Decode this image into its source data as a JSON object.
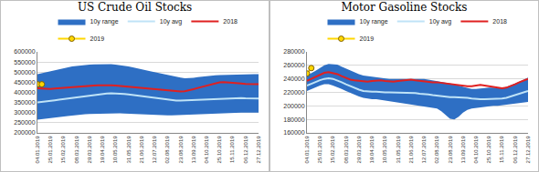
{
  "chart_data": [
    {
      "type": "line",
      "title": "US Crude Oil Stocks",
      "categories": [
        "04.01.2019",
        null,
        null,
        "25.01.2019",
        null,
        null,
        "15.02.2019",
        null,
        null,
        "08.03.2019",
        null,
        null,
        "29.03.2019",
        null,
        null,
        "19.04.2019",
        null,
        null,
        "10.05.2019",
        null,
        null,
        "31.05.2019",
        null,
        null,
        "21.06.2019",
        null,
        null,
        "12.07.2019",
        null,
        null,
        "02.08.2019",
        null,
        null,
        "23.08.2019",
        null,
        null,
        "13.09.2019",
        null,
        null,
        "04.10.2019",
        null,
        null,
        "25.10.2019",
        null,
        null,
        "15.11.2019",
        null,
        null,
        "06.12.2019",
        null,
        null,
        "27.12.2019"
      ],
      "series": [
        {
          "name": "10y range",
          "type": "area",
          "color": "#2e6fc4",
          "values": [
            490000,
            495000,
            500000,
            505000,
            510000,
            515000,
            520000,
            525000,
            528000,
            530000,
            533000,
            535000,
            537000,
            538000,
            539000,
            540000,
            540000,
            539000,
            537000,
            535000,
            532000,
            528000,
            524000,
            520000,
            515000,
            510000,
            505000,
            500000,
            495000,
            490000,
            485000,
            480000,
            476000,
            473000,
            470000,
            470000,
            472000,
            475000,
            478000,
            480000,
            482000,
            484000,
            485000,
            486000,
            487000,
            487000,
            488000,
            488000,
            489000,
            489000,
            490000,
            490000
          ],
          "lower": [
            265000,
            268000,
            270000,
            272000,
            275000,
            278000,
            280000,
            283000,
            285000,
            288000,
            290000,
            292000,
            293000,
            294000,
            295000,
            296000,
            297000,
            298000,
            298000,
            297000,
            296000,
            295000,
            293000,
            291000,
            290000,
            288000,
            287000,
            286000,
            285000,
            285000,
            286000,
            287000,
            288000,
            289000,
            290000,
            290000,
            291000,
            292000,
            293000,
            294000,
            295000,
            296000,
            297000,
            298000,
            298000,
            299000,
            299000,
            300000,
            300000,
            300000,
            300000,
            300000
          ]
        },
        {
          "name": "10y avg",
          "type": "line",
          "color": "#bfe3f7",
          "values": [
            350000,
            352000,
            355000,
            358000,
            361000,
            364000,
            367000,
            370000,
            373000,
            376000,
            379000,
            382000,
            385000,
            388000,
            390000,
            392000,
            394000,
            395000,
            395000,
            394000,
            392000,
            390000,
            387000,
            384000,
            381000,
            378000,
            375000,
            372000,
            369000,
            366000,
            363000,
            361000,
            360000,
            360000,
            361000,
            362000,
            363000,
            364000,
            365000,
            366000,
            367000,
            368000,
            369000,
            370000,
            371000,
            372000,
            372000,
            372000,
            371000,
            371000,
            370000,
            370000
          ]
        },
        {
          "name": "2018",
          "type": "line",
          "color": "#e02020",
          "values": [
            420000,
            418000,
            416000,
            417000,
            419000,
            421000,
            423000,
            425000,
            427000,
            429000,
            430000,
            432000,
            433000,
            434000,
            435000,
            436000,
            436000,
            435000,
            434000,
            432000,
            430000,
            428000,
            426000,
            424000,
            422000,
            420000,
            418000,
            416000,
            414000,
            412000,
            410000,
            408000,
            406000,
            405000,
            406000,
            410000,
            416000,
            422000,
            428000,
            434000,
            440000,
            445000,
            449000,
            451000,
            450000,
            448000,
            446000,
            444000,
            442000,
            441000,
            440000,
            440000
          ]
        },
        {
          "name": "2019",
          "type": "line",
          "color": "#ffd700",
          "marker": "circle",
          "values": [
            440000,
            440000,
            null,
            null,
            null,
            null,
            null,
            null,
            null,
            null,
            null,
            null,
            null,
            null,
            null,
            null,
            null,
            null,
            null,
            null,
            null,
            null,
            null,
            null,
            null,
            null,
            null,
            null,
            null,
            null,
            null,
            null,
            null,
            null,
            null,
            null,
            null,
            null,
            null,
            null,
            null,
            null,
            null,
            null,
            null,
            null,
            null,
            null,
            null,
            null,
            null,
            null
          ]
        }
      ],
      "ylim": [
        200000,
        600000
      ],
      "yticks": [
        200000,
        250000,
        300000,
        350000,
        400000,
        450000,
        500000,
        550000,
        600000
      ],
      "grid": true,
      "legend": "top"
    },
    {
      "type": "line",
      "title": "Motor Gasoline Stocks",
      "categories": [
        "04.01.2019",
        null,
        null,
        "25.01.2019",
        null,
        null,
        "15.02.2019",
        null,
        null,
        "08.03.2019",
        null,
        null,
        "29.03.2019",
        null,
        null,
        "19.04.2019",
        null,
        null,
        "10.05.2019",
        null,
        null,
        "31.05.2019",
        null,
        null,
        "21.06.2019",
        null,
        null,
        "12.07.2019",
        null,
        null,
        "02.08.2019",
        null,
        null,
        "23.08.2019",
        null,
        null,
        "13.09.2019",
        null,
        null,
        "04.10.2019",
        null,
        null,
        "25.10.2019",
        null,
        null,
        "15.11.2019",
        null,
        null,
        "06.12.2019",
        null,
        null,
        "27.12.2019"
      ],
      "series": [
        {
          "name": "10y range",
          "type": "area",
          "color": "#2e6fc4",
          "values": [
            245000,
            248000,
            252000,
            256000,
            260000,
            262000,
            262000,
            261000,
            258000,
            255000,
            252000,
            249000,
            247000,
            245000,
            244000,
            243000,
            242000,
            241000,
            240000,
            240000,
            240000,
            240000,
            240000,
            241000,
            241000,
            241000,
            240000,
            240000,
            239000,
            238000,
            237000,
            236000,
            235000,
            234000,
            232000,
            230000,
            228000,
            226000,
            225000,
            225000,
            226000,
            227000,
            227000,
            227000,
            226000,
            226000,
            228000,
            230000,
            233000,
            236000,
            239000,
            242000
          ],
          "lower": [
            222000,
            225000,
            228000,
            230000,
            232000,
            232000,
            230000,
            228000,
            225000,
            222000,
            219000,
            216000,
            214000,
            212000,
            211000,
            210000,
            210000,
            209000,
            208000,
            207000,
            206000,
            205000,
            204000,
            203000,
            202000,
            202000,
            201000,
            200000,
            199000,
            198000,
            196000,
            192000,
            186000,
            181000,
            180000,
            184000,
            190000,
            194000,
            196000,
            197000,
            198000,
            199000,
            200000,
            200000,
            200000,
            201000,
            201000,
            202000,
            203000,
            204000,
            205000,
            206000
          ]
        },
        {
          "name": "10y avg",
          "type": "line",
          "color": "#bfe3f7",
          "values": [
            230000,
            233000,
            236000,
            238000,
            240000,
            241000,
            240000,
            238000,
            235000,
            232000,
            229000,
            226000,
            224000,
            222000,
            221000,
            221000,
            221000,
            220000,
            220000,
            220000,
            220000,
            220000,
            220000,
            220000,
            219000,
            219000,
            218000,
            218000,
            217000,
            216000,
            215000,
            214000,
            213000,
            213000,
            213000,
            213000,
            212000,
            212000,
            211000,
            210000,
            210000,
            210000,
            210000,
            210000,
            210000,
            211000,
            212000,
            214000,
            216000,
            218000,
            220000,
            222000
          ]
        },
        {
          "name": "2018",
          "type": "line",
          "color": "#e02020",
          "values": [
            237000,
            240000,
            244000,
            247000,
            249000,
            250000,
            249000,
            247000,
            244000,
            241000,
            239000,
            238000,
            237000,
            236000,
            236000,
            237000,
            238000,
            238000,
            237000,
            236000,
            236000,
            237000,
            238000,
            239000,
            239000,
            238000,
            237000,
            236000,
            236000,
            235000,
            235000,
            234000,
            233000,
            233000,
            232000,
            231000,
            230000,
            229000,
            229000,
            230000,
            231000,
            230000,
            229000,
            228000,
            227000,
            226000,
            227000,
            229000,
            232000,
            235000,
            237000,
            240000
          ]
        },
        {
          "name": "2019",
          "type": "line",
          "color": "#ffd700",
          "marker": "circle",
          "values": [
            248000,
            256000,
            null,
            null,
            null,
            null,
            null,
            null,
            null,
            null,
            null,
            null,
            null,
            null,
            null,
            null,
            null,
            null,
            null,
            null,
            null,
            null,
            null,
            null,
            null,
            null,
            null,
            null,
            null,
            null,
            null,
            null,
            null,
            null,
            null,
            null,
            null,
            null,
            null,
            null,
            null,
            null,
            null,
            null,
            null,
            null,
            null,
            null,
            null,
            null,
            null,
            null
          ]
        }
      ],
      "ylim": [
        160000,
        280000
      ],
      "yticks": [
        160000,
        180000,
        200000,
        220000,
        240000,
        260000,
        280000
      ],
      "grid": true,
      "legend": "top"
    }
  ]
}
